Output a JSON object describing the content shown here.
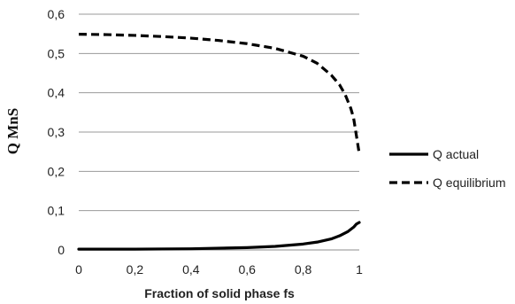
{
  "chart_data": {
    "type": "line",
    "title": "",
    "xlabel": "Fraction of solid phase fs",
    "ylabel": "Q MnS",
    "xlim": [
      0,
      1
    ],
    "ylim": [
      0,
      0.6
    ],
    "x_ticks": [
      "0",
      "0,2",
      "0,4",
      "0,6",
      "0,8",
      "1"
    ],
    "y_ticks": [
      "0",
      "0,1",
      "0,2",
      "0,3",
      "0,4",
      "0,5",
      "0,6"
    ],
    "grid": "horizontal",
    "legend_position": "right",
    "series": [
      {
        "name": "Q actual",
        "style": "solid",
        "color": "#000000",
        "points": [
          [
            0,
            0.002
          ],
          [
            0.2,
            0.002
          ],
          [
            0.4,
            0.003
          ],
          [
            0.6,
            0.006
          ],
          [
            0.7,
            0.009
          ],
          [
            0.8,
            0.015
          ],
          [
            0.85,
            0.02
          ],
          [
            0.9,
            0.028
          ],
          [
            0.93,
            0.036
          ],
          [
            0.96,
            0.047
          ],
          [
            0.98,
            0.058
          ],
          [
            0.99,
            0.066
          ],
          [
            1.0,
            0.07
          ]
        ]
      },
      {
        "name": "Q equilibrium",
        "style": "dashed",
        "color": "#000000",
        "points": [
          [
            0,
            0.549
          ],
          [
            0.1,
            0.548
          ],
          [
            0.2,
            0.546
          ],
          [
            0.3,
            0.543
          ],
          [
            0.4,
            0.539
          ],
          [
            0.5,
            0.533
          ],
          [
            0.6,
            0.525
          ],
          [
            0.7,
            0.513
          ],
          [
            0.8,
            0.493
          ],
          [
            0.85,
            0.475
          ],
          [
            0.9,
            0.445
          ],
          [
            0.93,
            0.42
          ],
          [
            0.95,
            0.395
          ],
          [
            0.97,
            0.36
          ],
          [
            0.98,
            0.335
          ],
          [
            0.99,
            0.29
          ],
          [
            1.0,
            0.245
          ]
        ]
      }
    ]
  }
}
